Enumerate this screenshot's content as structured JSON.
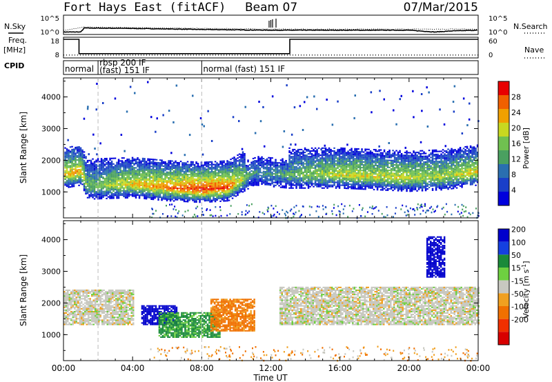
{
  "header": {
    "station": "Fort Hays East (fitACF)",
    "beam": "Beam 07",
    "date": "07/Mar/2015"
  },
  "left_labels": {
    "nsky": "N.Sky",
    "freq": "Freq.",
    "freq_unit": "[MHz]",
    "cpid": "CPID"
  },
  "right_labels": {
    "nsearch": "N.Search",
    "nave": "Nave"
  },
  "noise_axis": {
    "ticks_left": [
      "10^5",
      "10^0"
    ],
    "ticks_right": [
      "10^5",
      "10^0"
    ]
  },
  "freq_axis": {
    "ticks_left": [
      "18",
      "8"
    ],
    "ticks_right": [
      "60",
      "0"
    ]
  },
  "cpid_segments": [
    {
      "start": 0.0,
      "end": 2.0,
      "label": "normal"
    },
    {
      "start": 2.0,
      "end": 8.0,
      "label": "rbsp 200 IF\n(fast) 151 IF"
    },
    {
      "start": 8.0,
      "end": 24.0,
      "label": "normal (fast) 151 IF"
    }
  ],
  "x_axis": {
    "ticks": [
      "00:00",
      "04:00",
      "08:00",
      "12:00",
      "16:00",
      "20:00",
      "00:00"
    ],
    "label": "Time UT",
    "range_hours": [
      0,
      24
    ]
  },
  "y_axis": {
    "label": "Slant Range [km]",
    "ticks": [
      "1000",
      "2000",
      "3000",
      "4000"
    ],
    "range_km": [
      180,
      4600
    ]
  },
  "power_scale": {
    "label": "Power [dB]",
    "ticks": [
      "4",
      "8",
      "12",
      "16",
      "20",
      "24",
      "28"
    ],
    "range": [
      0,
      32
    ],
    "colors": [
      "#0000dd",
      "#1a3fc8",
      "#2a6fb0",
      "#4aa060",
      "#70c050",
      "#c8d820",
      "#f0a000",
      "#f06000",
      "#e80000"
    ]
  },
  "velocity_scale": {
    "label_main": "Velocity [m s",
    "label_sup": "-1",
    "label_end": "]",
    "ticks": [
      "200",
      "100",
      "50",
      "15",
      "-15",
      "-50",
      "-100",
      "-200"
    ],
    "colors": [
      "#0000cc",
      "#1540e0",
      "#1a8a3a",
      "#6ed040",
      "#c8c8c0",
      "#f0a020",
      "#f07000",
      "#f03000",
      "#d80000"
    ]
  },
  "chart_data": [
    {
      "type": "line",
      "title": "N.Sky / N.Search",
      "x_unit": "hours UT",
      "series": [
        {
          "name": "N.Sky",
          "x": [
            0,
            1,
            1.2,
            4,
            8,
            12,
            16,
            20,
            21.5,
            22.5,
            24
          ],
          "y_log10": [
            0.5,
            0.5,
            1.6,
            1.5,
            1.2,
            1.0,
            1.0,
            1.0,
            0.5,
            0.8,
            1.0
          ]
        },
        {
          "name": "N.Search",
          "x": [
            0,
            1.2,
            4,
            8,
            12,
            16,
            20,
            24
          ],
          "y_log10": [
            0.9,
            1.9,
            1.7,
            1.5,
            1.3,
            1.3,
            1.3,
            1.3
          ]
        }
      ]
    },
    {
      "type": "line",
      "title": "Freq. [MHz] / Nave",
      "series": [
        {
          "name": "Freq.",
          "x": [
            0,
            0.9,
            0.9,
            13.1,
            13.1,
            24
          ],
          "y": [
            18,
            18,
            10,
            10,
            18,
            18
          ]
        },
        {
          "name": "Nave",
          "x": [
            0,
            1,
            13,
            24
          ],
          "y": [
            10,
            10,
            10,
            10
          ]
        }
      ]
    },
    {
      "type": "heatmap",
      "title": "Power [dB]",
      "x_unit": "hours UT",
      "y_unit": "km",
      "note": "main echo band",
      "band": {
        "x": [
          0,
          1,
          1.3,
          4,
          6,
          8,
          9.5,
          11,
          13,
          16,
          20,
          22,
          24
        ],
        "range_km": [
          1500,
          1600,
          1150,
          1200,
          1100,
          1050,
          1100,
          1600,
          1500,
          1500,
          1400,
          1450,
          1600
        ],
        "peak_power_db": [
          22,
          24,
          14,
          22,
          26,
          30,
          28,
          10,
          14,
          20,
          20,
          18,
          22
        ]
      }
    },
    {
      "type": "heatmap",
      "title": "Velocity [m s-1]",
      "x_unit": "hours UT",
      "y_unit": "km",
      "regions": [
        {
          "x": [
            0,
            4
          ],
          "range_km": [
            1300,
            2400
          ],
          "velocity": 0
        },
        {
          "x": [
            4.5,
            6.5
          ],
          "range_km": [
            1300,
            1900
          ],
          "velocity": 200
        },
        {
          "x": [
            5.5,
            9
          ],
          "range_km": [
            900,
            1700
          ],
          "velocity": 40
        },
        {
          "x": [
            8.5,
            11
          ],
          "range_km": [
            1100,
            2100
          ],
          "velocity": -60
        },
        {
          "x": [
            12.5,
            24
          ],
          "range_km": [
            1300,
            2500
          ],
          "velocity": 0
        },
        {
          "x": [
            21,
            22
          ],
          "range_km": [
            2800,
            4100
          ],
          "velocity": 180
        }
      ]
    }
  ]
}
